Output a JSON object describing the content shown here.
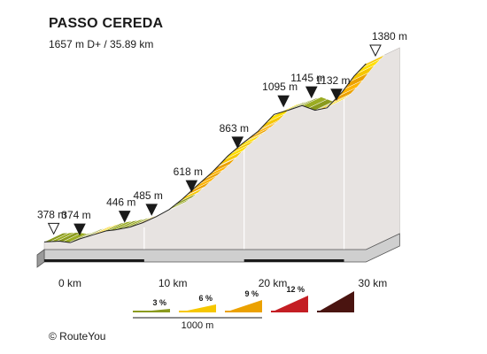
{
  "header": {
    "title": "PASSO CEREDA",
    "subtitle": "1657 m D+ / 35.89 km"
  },
  "credit": "© RouteYou",
  "colors": {
    "grade_3": "#8a9a1e",
    "grade_6": "#f6c700",
    "grade_9": "#eba100",
    "grade_12": "#c41e24",
    "grade_12plus": "#4a1410",
    "side": "#e7e3e1",
    "base_front": "#cfcfcf"
  },
  "chart_data": {
    "type": "area",
    "title": "PASSO CEREDA",
    "subtitle": "1657 m D+ / 35.89 km",
    "x_unit": "km",
    "y_unit": "m",
    "xlim": [
      0,
      35.89
    ],
    "x_ticks": [
      {
        "value": 0,
        "label": "0 km"
      },
      {
        "value": 10,
        "label": "10 km"
      },
      {
        "value": 20,
        "label": "20 km"
      },
      {
        "value": 30,
        "label": "30 km"
      }
    ],
    "profile": [
      {
        "x": 0.0,
        "y": 378
      },
      {
        "x": 1.5,
        "y": 382
      },
      {
        "x": 2.6,
        "y": 374
      },
      {
        "x": 3.6,
        "y": 396
      },
      {
        "x": 5.0,
        "y": 420
      },
      {
        "x": 6.2,
        "y": 440
      },
      {
        "x": 7.1,
        "y": 446
      },
      {
        "x": 8.6,
        "y": 462
      },
      {
        "x": 9.8,
        "y": 485
      },
      {
        "x": 11.2,
        "y": 520
      },
      {
        "x": 12.5,
        "y": 560
      },
      {
        "x": 13.8,
        "y": 618
      },
      {
        "x": 15.2,
        "y": 690
      },
      {
        "x": 16.8,
        "y": 770
      },
      {
        "x": 18.4,
        "y": 863
      },
      {
        "x": 19.8,
        "y": 930
      },
      {
        "x": 21.4,
        "y": 1000
      },
      {
        "x": 23.0,
        "y": 1095
      },
      {
        "x": 24.4,
        "y": 1118
      },
      {
        "x": 25.8,
        "y": 1145
      },
      {
        "x": 27.1,
        "y": 1118
      },
      {
        "x": 28.3,
        "y": 1132
      },
      {
        "x": 29.8,
        "y": 1220
      },
      {
        "x": 31.0,
        "y": 1310
      },
      {
        "x": 32.2,
        "y": 1380
      },
      {
        "x": 35.89,
        "y": 1380
      }
    ],
    "segments": [
      {
        "from": 0,
        "to": 4.6,
        "grade": 3
      },
      {
        "from": 4.6,
        "to": 5.8,
        "grade": 6
      },
      {
        "from": 5.8,
        "to": 9.0,
        "grade": 3
      },
      {
        "from": 9.0,
        "to": 10.4,
        "grade": 6
      },
      {
        "from": 10.4,
        "to": 13.5,
        "grade": 3
      },
      {
        "from": 13.5,
        "to": 14.2,
        "grade": 6
      },
      {
        "from": 14.2,
        "to": 17.4,
        "grade": 9
      },
      {
        "from": 17.4,
        "to": 20.2,
        "grade": 6
      },
      {
        "from": 20.2,
        "to": 21.6,
        "grade": 9
      },
      {
        "from": 21.6,
        "to": 24.0,
        "grade": 6
      },
      {
        "from": 24.0,
        "to": 27.4,
        "grade": 3
      },
      {
        "from": 27.4,
        "to": 28.8,
        "grade": 6
      },
      {
        "from": 28.8,
        "to": 30.6,
        "grade": 9
      },
      {
        "from": 30.6,
        "to": 32.2,
        "grade": 6
      }
    ],
    "waypoints": [
      {
        "x": 0.0,
        "elevation": 378,
        "label": "378 m",
        "marker": "open"
      },
      {
        "x": 2.6,
        "elevation": 374,
        "label": "374 m",
        "marker": "filled"
      },
      {
        "x": 7.1,
        "elevation": 446,
        "label": "446 m",
        "marker": "filled"
      },
      {
        "x": 9.8,
        "elevation": 485,
        "label": "485 m",
        "marker": "filled"
      },
      {
        "x": 13.8,
        "elevation": 618,
        "label": "618 m",
        "marker": "filled"
      },
      {
        "x": 18.4,
        "elevation": 863,
        "label": "863 m",
        "marker": "filled"
      },
      {
        "x": 23.0,
        "elevation": 1095,
        "label": "1095 m",
        "marker": "filled"
      },
      {
        "x": 25.8,
        "elevation": 1145,
        "label": "1145 m",
        "marker": "filled"
      },
      {
        "x": 28.3,
        "elevation": 1132,
        "label": "1132 m",
        "marker": "filled"
      },
      {
        "x": 32.2,
        "elevation": 1380,
        "label": "1380 m",
        "marker": "open"
      }
    ],
    "legend": {
      "items": [
        {
          "label": "3 %",
          "grade": 3
        },
        {
          "label": "6 %",
          "grade": 6
        },
        {
          "label": "9 %",
          "grade": 9
        },
        {
          "label": "12 %",
          "grade": 12
        },
        {
          "label": "",
          "grade": 15
        }
      ],
      "scale_label": "1000 m"
    }
  }
}
